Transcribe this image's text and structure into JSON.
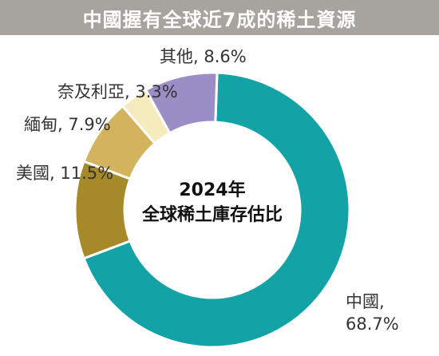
{
  "chart_data": {
    "type": "pie",
    "style": "donut",
    "title": "中國握有全球近7成的稀土資源",
    "center_label": [
      "2024年",
      "全球稀土庫存估比"
    ],
    "unit": "%",
    "slices": [
      {
        "name": "中國",
        "value": 68.7,
        "value_label": "68.7%",
        "color": "#13a3a7"
      },
      {
        "name": "美國",
        "value": 11.5,
        "value_label": "11.5%",
        "color": "#a68a2a"
      },
      {
        "name": "緬甸",
        "value": 7.9,
        "value_label": "7.9%",
        "color": "#d4b35e"
      },
      {
        "name": "奈及利亞",
        "value": 3.3,
        "value_label": "3.3%",
        "color": "#f5ebbd"
      },
      {
        "name": "其他",
        "value": 8.6,
        "value_label": "8.6%",
        "color": "#9b8ec6"
      }
    ]
  }
}
